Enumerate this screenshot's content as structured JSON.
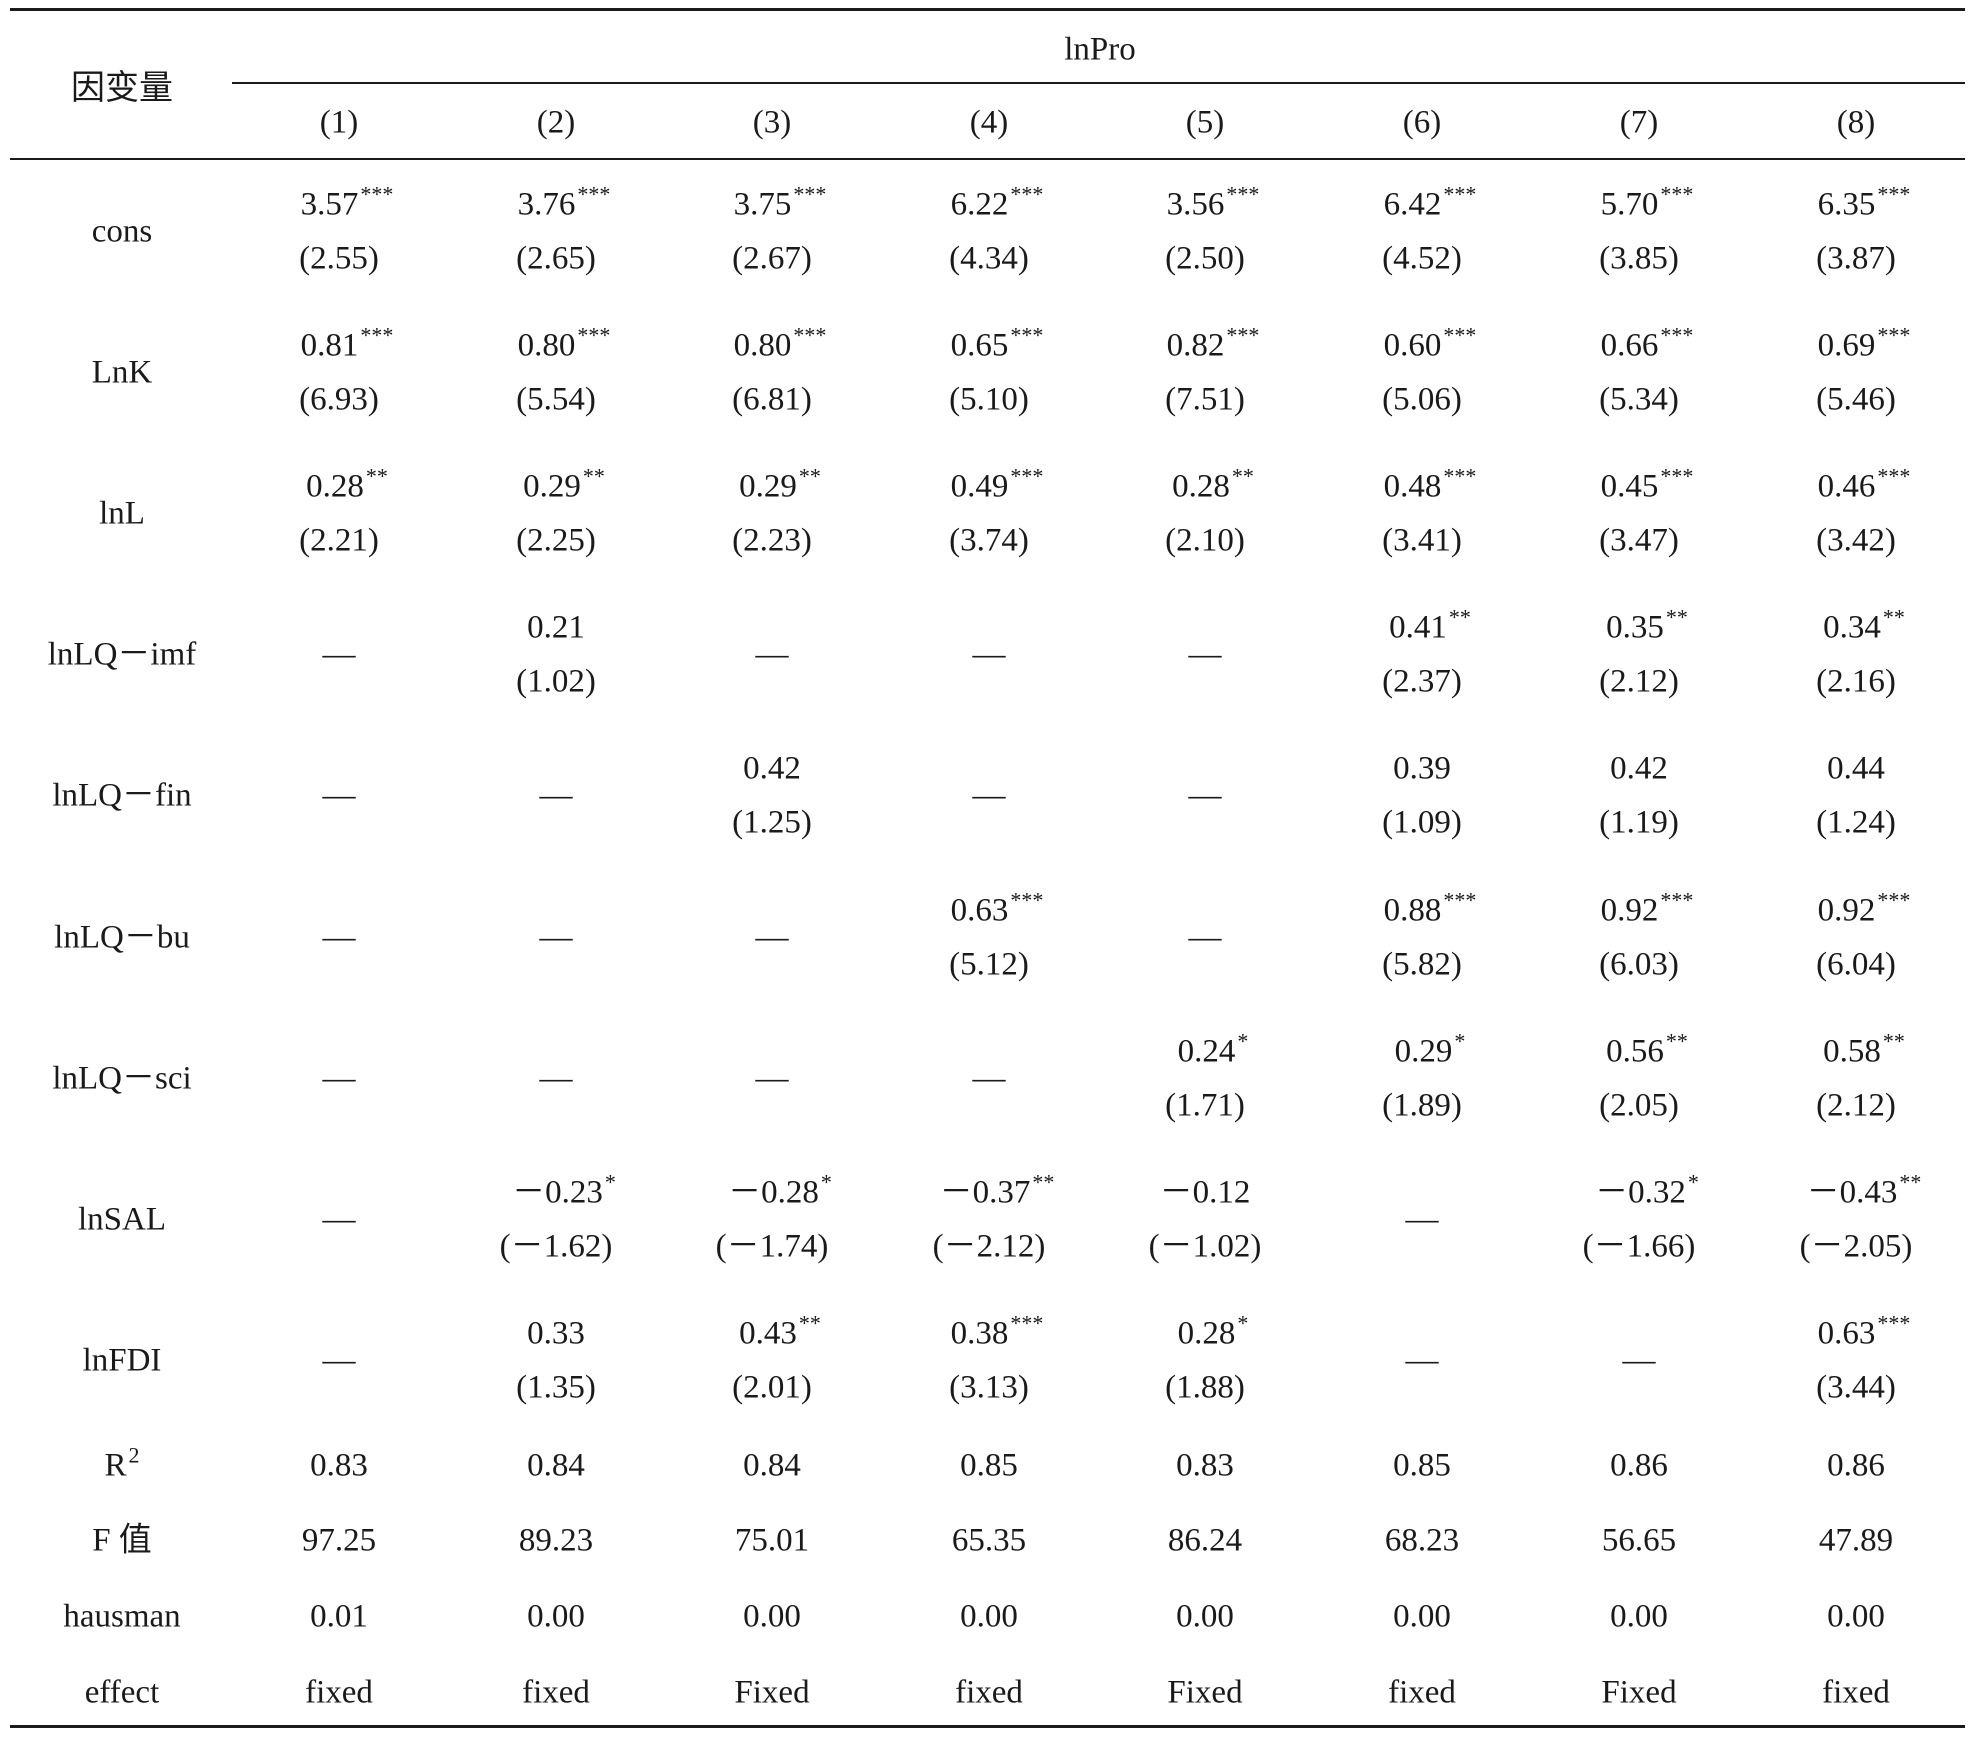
{
  "header": {
    "dep_var_label": "因变量",
    "group_label": "lnPro",
    "columns": [
      "(1)",
      "(2)",
      "(3)",
      "(4)",
      "(5)",
      "(6)",
      "(7)",
      "(8)"
    ]
  },
  "rows": [
    {
      "label": "cons",
      "cells": [
        {
          "coef": "3.57",
          "stars": "***",
          "t": "(2.55)"
        },
        {
          "coef": "3.76",
          "stars": "***",
          "t": "(2.65)"
        },
        {
          "coef": "3.75",
          "stars": "***",
          "t": "(2.67)"
        },
        {
          "coef": "6.22",
          "stars": "***",
          "t": "(4.34)"
        },
        {
          "coef": "3.56",
          "stars": "***",
          "t": "(2.50)"
        },
        {
          "coef": "6.42",
          "stars": "***",
          "t": "(4.52)"
        },
        {
          "coef": "5.70",
          "stars": "***",
          "t": "(3.85)"
        },
        {
          "coef": "6.35",
          "stars": "***",
          "t": "(3.87)"
        }
      ]
    },
    {
      "label": "LnK",
      "cells": [
        {
          "coef": "0.81",
          "stars": "***",
          "t": "(6.93)"
        },
        {
          "coef": "0.80",
          "stars": "***",
          "t": "(5.54)"
        },
        {
          "coef": "0.80",
          "stars": "***",
          "t": "(6.81)"
        },
        {
          "coef": "0.65",
          "stars": "***",
          "t": "(5.10)"
        },
        {
          "coef": "0.82",
          "stars": "***",
          "t": "(7.51)"
        },
        {
          "coef": "0.60",
          "stars": "***",
          "t": "(5.06)"
        },
        {
          "coef": "0.66",
          "stars": "***",
          "t": "(5.34)"
        },
        {
          "coef": "0.69",
          "stars": "***",
          "t": "(5.46)"
        }
      ]
    },
    {
      "label": "lnL",
      "cells": [
        {
          "coef": "0.28",
          "stars": "**",
          "t": "(2.21)"
        },
        {
          "coef": "0.29",
          "stars": "**",
          "t": "(2.25)"
        },
        {
          "coef": "0.29",
          "stars": "**",
          "t": "(2.23)"
        },
        {
          "coef": "0.49",
          "stars": "***",
          "t": "(3.74)"
        },
        {
          "coef": "0.28",
          "stars": "**",
          "t": "(2.10)"
        },
        {
          "coef": "0.48",
          "stars": "***",
          "t": "(3.41)"
        },
        {
          "coef": "0.45",
          "stars": "***",
          "t": "(3.47)"
        },
        {
          "coef": "0.46",
          "stars": "***",
          "t": "(3.42)"
        }
      ]
    },
    {
      "label": "lnLQ－imf",
      "cells": [
        {
          "dash": "—"
        },
        {
          "coef": "0.21",
          "stars": "",
          "t": "(1.02)"
        },
        {
          "dash": "—"
        },
        {
          "dash": "—"
        },
        {
          "dash": "—"
        },
        {
          "coef": "0.41",
          "stars": "**",
          "t": "(2.37)"
        },
        {
          "coef": "0.35",
          "stars": "**",
          "t": "(2.12)"
        },
        {
          "coef": "0.34",
          "stars": "**",
          "t": "(2.16)"
        }
      ]
    },
    {
      "label": "lnLQ－fin",
      "cells": [
        {
          "dash": "—"
        },
        {
          "dash": "—"
        },
        {
          "coef": "0.42",
          "stars": "",
          "t": "(1.25)"
        },
        {
          "dash": "—"
        },
        {
          "dash": "—"
        },
        {
          "coef": "0.39",
          "stars": "",
          "t": "(1.09)"
        },
        {
          "coef": "0.42",
          "stars": "",
          "t": "(1.19)"
        },
        {
          "coef": "0.44",
          "stars": "",
          "t": "(1.24)"
        }
      ]
    },
    {
      "label": "lnLQ－bu",
      "cells": [
        {
          "dash": "—"
        },
        {
          "dash": "—"
        },
        {
          "dash": "—"
        },
        {
          "coef": "0.63",
          "stars": "***",
          "t": "(5.12)"
        },
        {
          "dash": "—"
        },
        {
          "coef": "0.88",
          "stars": "***",
          "t": "(5.82)"
        },
        {
          "coef": "0.92",
          "stars": "***",
          "t": "(6.03)"
        },
        {
          "coef": "0.92",
          "stars": "***",
          "t": "(6.04)"
        }
      ]
    },
    {
      "label": "lnLQ－sci",
      "cells": [
        {
          "dash": "—"
        },
        {
          "dash": "—"
        },
        {
          "dash": "—"
        },
        {
          "dash": "—"
        },
        {
          "coef": "0.24",
          "stars": "*",
          "t": "(1.71)"
        },
        {
          "coef": "0.29",
          "stars": "*",
          "t": "(1.89)"
        },
        {
          "coef": "0.56",
          "stars": "**",
          "t": "(2.05)"
        },
        {
          "coef": "0.58",
          "stars": "**",
          "t": "(2.12)"
        }
      ]
    },
    {
      "label": "lnSAL",
      "cells": [
        {
          "dash": "—"
        },
        {
          "coef": "－0.23",
          "stars": "*",
          "t": "(－1.62)"
        },
        {
          "coef": "－0.28",
          "stars": "*",
          "t": "(－1.74)"
        },
        {
          "coef": "－0.37",
          "stars": "**",
          "t": "(－2.12)"
        },
        {
          "coef": "－0.12",
          "stars": "",
          "t": "(－1.02)"
        },
        {
          "dash": "—"
        },
        {
          "coef": "－0.32",
          "stars": "*",
          "t": "(－1.66)"
        },
        {
          "coef": "－0.43",
          "stars": "**",
          "t": "(－2.05)"
        }
      ]
    },
    {
      "label": "lnFDI",
      "cells": [
        {
          "dash": "—"
        },
        {
          "coef": "0.33",
          "stars": "",
          "t": "(1.35)"
        },
        {
          "coef": "0.43",
          "stars": "**",
          "t": "(2.01)"
        },
        {
          "coef": "0.38",
          "stars": "***",
          "t": "(3.13)"
        },
        {
          "coef": "0.28",
          "stars": "*",
          "t": "(1.88)"
        },
        {
          "dash": "—"
        },
        {
          "dash": "—"
        },
        {
          "coef": "0.63",
          "stars": "***",
          "t": "(3.44)"
        }
      ]
    }
  ],
  "stats": [
    {
      "label": "R",
      "label_sup": "2",
      "values": [
        "0.83",
        "0.84",
        "0.84",
        "0.85",
        "0.83",
        "0.85",
        "0.86",
        "0.86"
      ]
    },
    {
      "label": "F 值",
      "values": [
        "97.25",
        "89.23",
        "75.01",
        "65.35",
        "86.24",
        "68.23",
        "56.65",
        "47.89"
      ]
    },
    {
      "label": "hausman",
      "values": [
        "0.01",
        "0.00",
        "0.00",
        "0.00",
        "0.00",
        "0.00",
        "0.00",
        "0.00"
      ]
    },
    {
      "label": "effect",
      "values": [
        "fixed",
        "fixed",
        "Fixed",
        "fixed",
        "Fixed",
        "fixed",
        "Fixed",
        "fixed"
      ]
    }
  ]
}
